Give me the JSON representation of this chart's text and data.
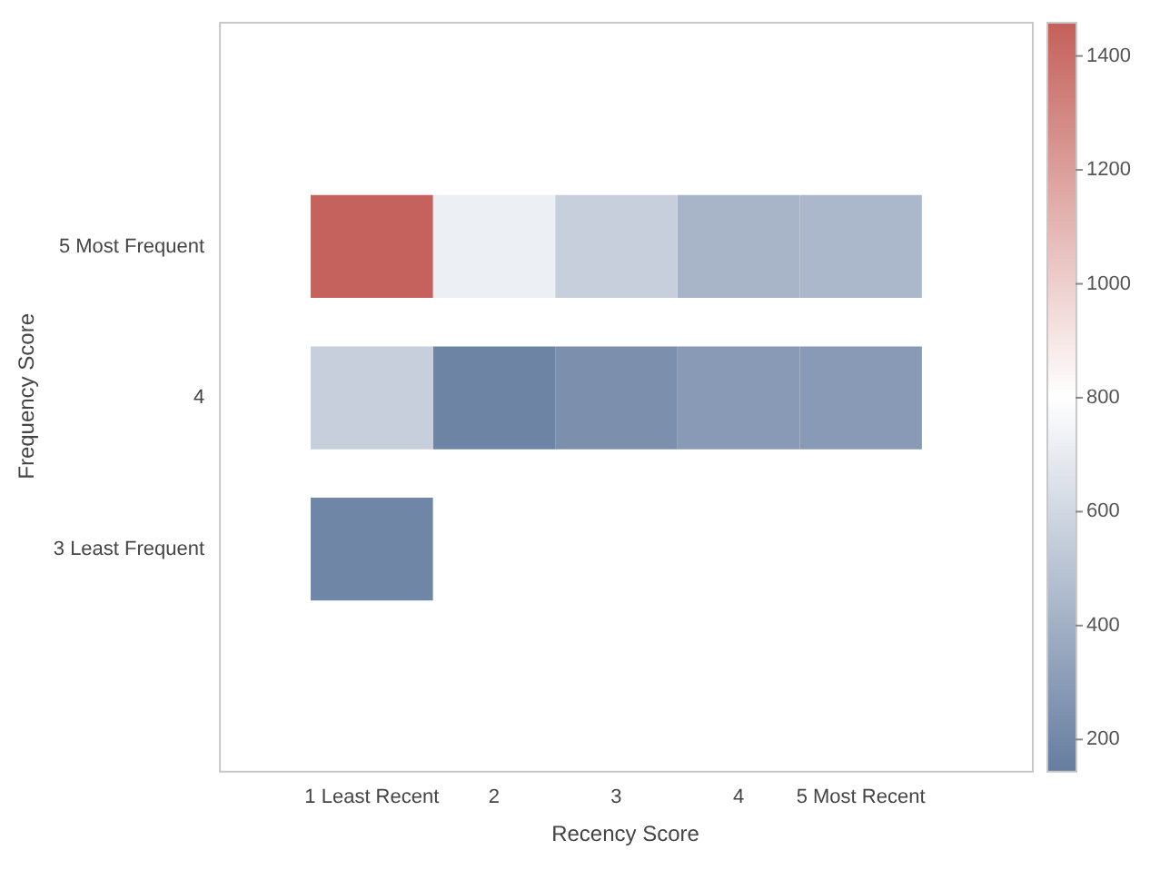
{
  "chart_data": {
    "type": "heatmap",
    "xlabel": "Recency Score",
    "ylabel": "Frequency Score",
    "categories": [
      "1 Least Recent",
      "2",
      "3",
      "4",
      "5 Most Recent"
    ],
    "y_categories": [
      "5 Most Frequent",
      "4",
      "3 Least Frequent"
    ],
    "cells": [
      [
        1450,
        720,
        560,
        430,
        440
      ],
      [
        560,
        180,
        240,
        290,
        290
      ],
      [
        190,
        null,
        null,
        null,
        null
      ]
    ],
    "clim": [
      145,
      1460
    ],
    "cticks": [
      200,
      400,
      600,
      800,
      1000,
      1200,
      1400
    ]
  }
}
